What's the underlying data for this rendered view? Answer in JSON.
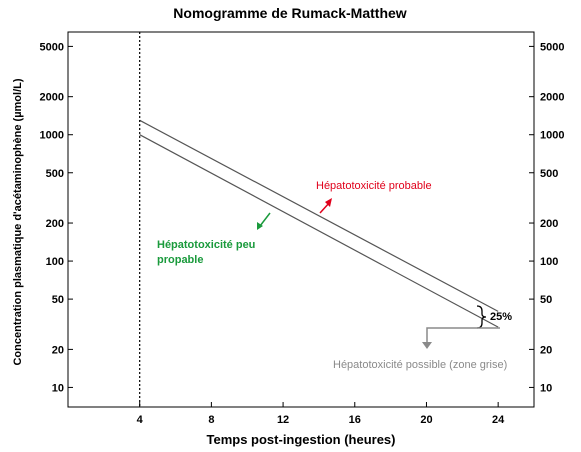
{
  "chart_data": {
    "type": "line",
    "title": "Nomogramme de Rumack-Matthew",
    "xlabel": "Temps post-ingestion (heures)",
    "ylabel": "Concentration plasmatique d'acétaminophène  (µmol/L)",
    "x_ticks": [
      4,
      8,
      12,
      16,
      20,
      24
    ],
    "y_ticks": [
      10,
      20,
      50,
      100,
      200,
      500,
      1000,
      2000,
      5000
    ],
    "y_scale": "log",
    "xlim": [
      0,
      26
    ],
    "ylim": [
      7,
      6500
    ],
    "series": [
      {
        "name": "",
        "x": [
          4,
          24
        ],
        "y": [
          1300,
          40
        ],
        "color": "#555555"
      },
      {
        "name": "",
        "x": [
          4,
          24
        ],
        "y": [
          1000,
          30
        ],
        "color": "#555555"
      }
    ],
    "vertical_line_x": 4,
    "annotations": {
      "probable": "Hépatotoxicité probable",
      "peu_probable_line1": "Hépatotoxicité peu",
      "peu_probable_line2": "propable",
      "possible": "Hépatotoxicité possible (zone grise)",
      "percent": "25%"
    },
    "colors": {
      "probable": "#e0001b",
      "peu_probable": "#1a9a3c",
      "possible": "#8a8a8a",
      "lines": "#555555"
    }
  }
}
